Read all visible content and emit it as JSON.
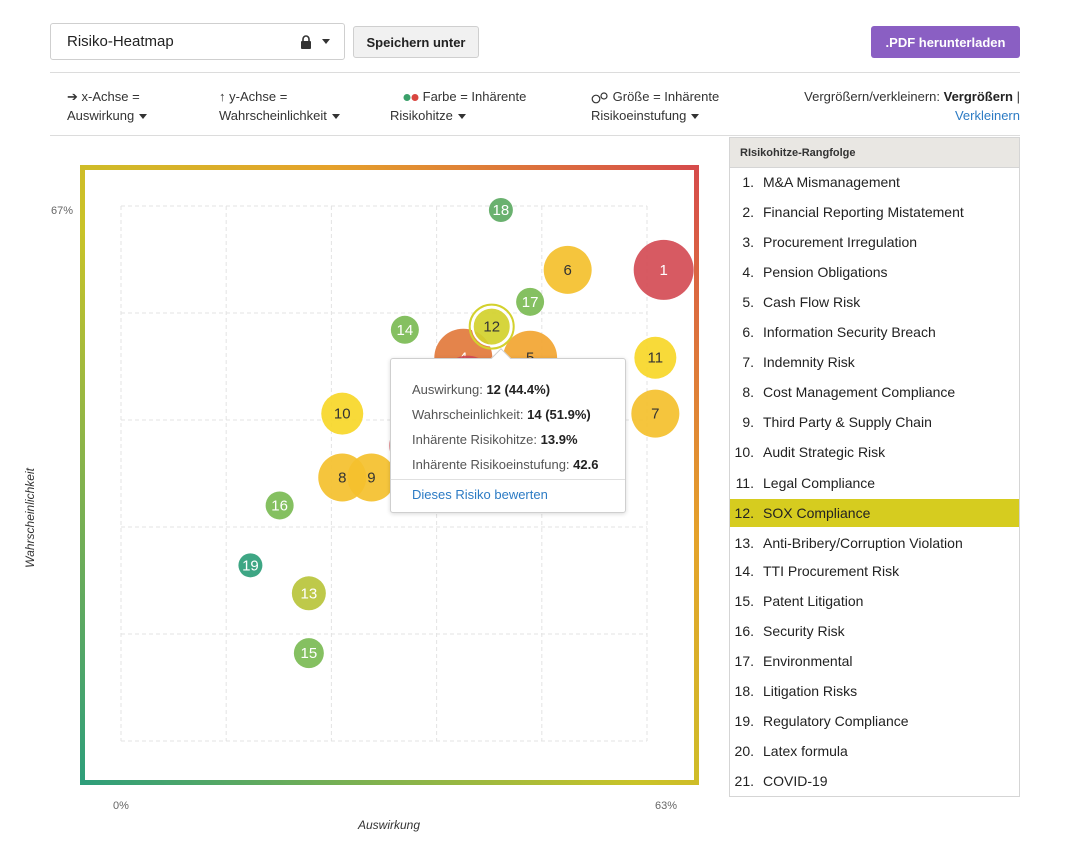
{
  "header": {
    "view_name": "Risiko-Heatmap",
    "view_icon": "lock-icon",
    "save_label": "Speichern unter",
    "pdf_label": ".PDF herunterladen",
    "pdf_color": "#8a5fc3"
  },
  "controls": {
    "x_axis": {
      "line1": "x-Achse =",
      "line2": "Auswirkung",
      "icon": "arrow-right-icon"
    },
    "y_axis": {
      "line1": "y-Achse =",
      "line2": "Wahrscheinlichkeit",
      "icon": "arrow-up-icon"
    },
    "color": {
      "line1": "Farbe = Inhärente",
      "line2": "Risikohitze",
      "icon": "color-dots-icon"
    },
    "size": {
      "line1": "Größe = Inhärente",
      "line2": "Risikoeinstufung",
      "icon": "size-circles-icon"
    },
    "zoom": {
      "prefix": "Vergrößern/verkleinern:",
      "active": "Vergrößern",
      "separator": "|",
      "other": "Verkleinern"
    }
  },
  "chart_data": {
    "type": "scatter",
    "subtype": "bubble",
    "xlabel": "Auswirkung",
    "ylabel": "Wahrscheinlichkeit",
    "xlim": [
      0,
      63
    ],
    "ylim": [
      0,
      67
    ],
    "xlim_labels": [
      "0%",
      "63%"
    ],
    "ylim_labels": [
      "67%"
    ],
    "grid": true,
    "frame_gradient": [
      "#2e9e7a",
      "#c9c328",
      "#e5a22a",
      "#d64b4b"
    ],
    "points": [
      {
        "id": "1",
        "x": 65,
        "y": 59,
        "r": 30,
        "color": "#d44c55"
      },
      {
        "id": "2",
        "x": 35.5,
        "y": 37,
        "r": 28,
        "color": "#d44c55"
      },
      {
        "id": "3",
        "x": 41.5,
        "y": 45,
        "r": 26,
        "color": "#d44c55"
      },
      {
        "id": "4",
        "x": 41,
        "y": 48,
        "r": 29,
        "color": "#e27a3c"
      },
      {
        "id": "5",
        "x": 49,
        "y": 48,
        "r": 27,
        "color": "#f2a531"
      },
      {
        "id": "6",
        "x": 53.5,
        "y": 59,
        "r": 24,
        "color": "#f4c02c"
      },
      {
        "id": "7",
        "x": 64,
        "y": 41,
        "r": 24,
        "color": "#f4c02c"
      },
      {
        "id": "8",
        "x": 26.5,
        "y": 33,
        "r": 24,
        "color": "#f4c02c"
      },
      {
        "id": "9",
        "x": 30,
        "y": 33,
        "r": 24,
        "color": "#f4c02c"
      },
      {
        "id": "10",
        "x": 26.5,
        "y": 41,
        "r": 21,
        "color": "#f7d728"
      },
      {
        "id": "11",
        "x": 64,
        "y": 48,
        "r": 21,
        "color": "#f7d728"
      },
      {
        "id": "12",
        "x": 44.4,
        "y": 51.9,
        "r": 19,
        "color": "#d3d12d",
        "selected": true
      },
      {
        "id": "13",
        "x": 22.5,
        "y": 18.5,
        "r": 17,
        "color": "#b8c43b"
      },
      {
        "id": "14",
        "x": 34,
        "y": 51.5,
        "r": 14,
        "color": "#7bbb54"
      },
      {
        "id": "15",
        "x": 22.5,
        "y": 11,
        "r": 15,
        "color": "#7bbb54"
      },
      {
        "id": "16",
        "x": 19,
        "y": 29.5,
        "r": 14,
        "color": "#7bbb54"
      },
      {
        "id": "17",
        "x": 49,
        "y": 55,
        "r": 14,
        "color": "#7bbb54"
      },
      {
        "id": "18",
        "x": 45.5,
        "y": 66.5,
        "r": 12,
        "color": "#5daa63"
      },
      {
        "id": "19",
        "x": 15.5,
        "y": 22,
        "r": 12,
        "color": "#2e9e7a"
      }
    ]
  },
  "tooltip": {
    "impact_label": "Auswirkung:",
    "impact_value": "12 (44.4%)",
    "likelihood_label": "Wahrscheinlichkeit:",
    "likelihood_value": "14 (51.9%)",
    "heat_label": "Inhärente Risikohitze:",
    "heat_value": "13.9%",
    "rating_label": "Inhärente Risikoeinstufung:",
    "rating_value": "42.6",
    "link": "Dieses Risiko bewerten"
  },
  "ranking": {
    "title": "RIsikohitze-Rangfolge",
    "selected_color": "#d6cc1f",
    "items": [
      {
        "num": "1.",
        "name": "M&A Mismanagement"
      },
      {
        "num": "2.",
        "name": "Financial Reporting Mistatement"
      },
      {
        "num": "3.",
        "name": "Procurement Irregulation"
      },
      {
        "num": "4.",
        "name": "Pension Obligations"
      },
      {
        "num": "5.",
        "name": "Cash Flow Risk"
      },
      {
        "num": "6.",
        "name": "Information Security Breach"
      },
      {
        "num": "7.",
        "name": "Indemnity Risk"
      },
      {
        "num": "8.",
        "name": "Cost Management Compliance"
      },
      {
        "num": "9.",
        "name": "Third Party & Supply Chain"
      },
      {
        "num": "10.",
        "name": "Audit Strategic Risk"
      },
      {
        "num": "11.",
        "name": "Legal Compliance"
      },
      {
        "num": "12.",
        "name": "SOX Compliance",
        "selected": true
      },
      {
        "num": "13.",
        "name": "Anti-Bribery/Corruption Violation"
      },
      {
        "num": "14.",
        "name": "TTI Procurement Risk"
      },
      {
        "num": "15.",
        "name": "Patent Litigation"
      },
      {
        "num": "16.",
        "name": "Security Risk"
      },
      {
        "num": "17.",
        "name": "Environmental"
      },
      {
        "num": "18.",
        "name": "Litigation Risks"
      },
      {
        "num": "19.",
        "name": "Regulatory Compliance"
      },
      {
        "num": "20.",
        "name": "Latex formula"
      },
      {
        "num": "21.",
        "name": "COVID-19"
      }
    ]
  }
}
